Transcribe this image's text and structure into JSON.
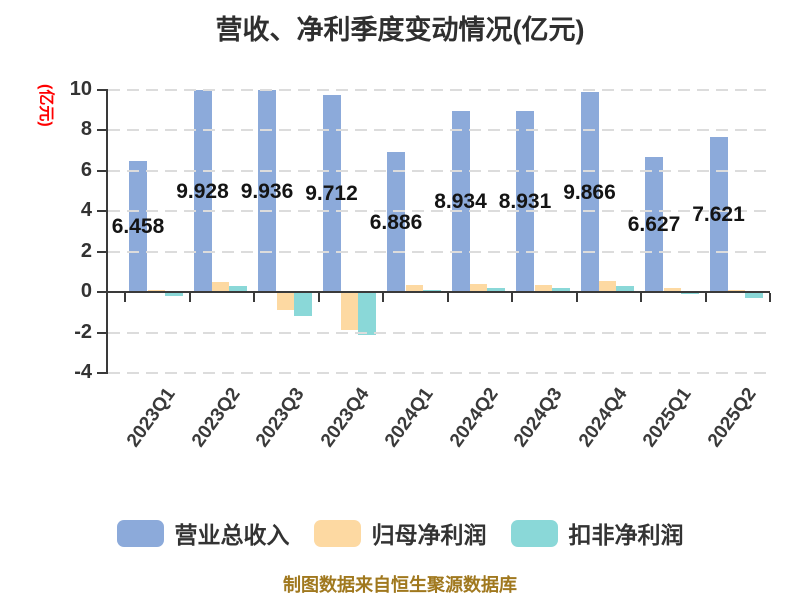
{
  "title": "营收、净利季度变动情况(亿元)",
  "y_axis_name": "(亿元)",
  "footer": "制图数据来自恒生聚源数据库",
  "colors": {
    "revenue": "#8CAADA",
    "net_profit": "#FDD9A2",
    "non_recurring": "#8AD8D8",
    "axis": "#3A3A3A",
    "grid": "#DCDCDC",
    "tick_label": "#333333",
    "value_label": "#141414",
    "axis_name_red": "#FF0000",
    "footer_gold": "#A0781E"
  },
  "chart_data": {
    "type": "bar",
    "title": "营收、净利季度变动情况(亿元)",
    "ylabel": "(亿元)",
    "categories": [
      "2023Q1",
      "2023Q2",
      "2023Q3",
      "2023Q4",
      "2024Q1",
      "2024Q2",
      "2024Q3",
      "2024Q4",
      "2025Q1",
      "2025Q2"
    ],
    "series": [
      {
        "key": "revenue",
        "name": "营业总收入",
        "values": [
          6.458,
          9.928,
          9.936,
          9.712,
          6.886,
          8.934,
          8.931,
          9.866,
          6.627,
          7.621
        ],
        "value_labels": [
          "6.458",
          "9.928",
          "9.936",
          "9.712",
          "6.886",
          "8.934",
          "8.931",
          "9.866",
          "6.627",
          "7.621"
        ]
      },
      {
        "key": "net_profit",
        "name": "归母净利润",
        "values": [
          0.03,
          0.46,
          -0.83,
          -1.8,
          0.3,
          0.35,
          0.32,
          0.5,
          0.15,
          0.08
        ]
      },
      {
        "key": "non_recurring",
        "name": "扣非净利润",
        "values": [
          -0.13,
          0.26,
          -1.11,
          -2.07,
          0.09,
          0.15,
          0.15,
          0.28,
          -0.05,
          -0.25
        ]
      }
    ],
    "ylim": [
      -4,
      10
    ],
    "yticks": [
      10,
      8,
      6,
      4,
      2,
      0,
      -2,
      -4
    ],
    "grid": "horizontal-dashed",
    "legend_position": "bottom"
  }
}
